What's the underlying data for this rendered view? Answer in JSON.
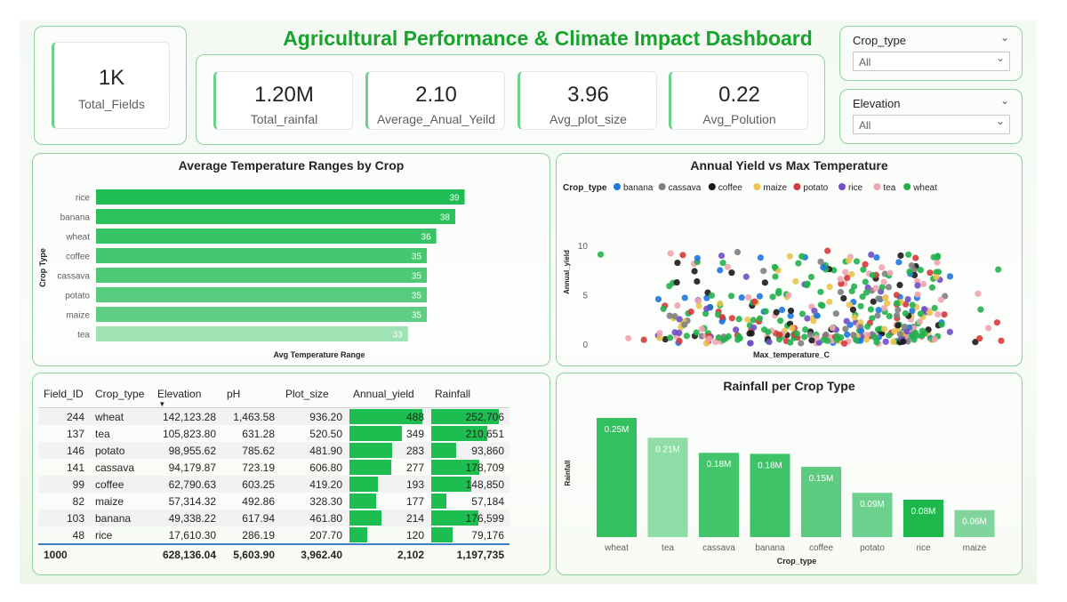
{
  "header": {
    "title": "Agricultural Performance & Climate Impact Dashboard",
    "title_color": "#17a32c"
  },
  "kpis": {
    "total_fields": {
      "value": "1K",
      "label": "Total_Fields"
    },
    "total_rainfall": {
      "value": "1.20M",
      "label": "Total_rainfal"
    },
    "avg_yield": {
      "value": "2.10",
      "label": "Average_Anual_Yeild"
    },
    "avg_plot": {
      "value": "3.96",
      "label": "Avg_plot_size"
    },
    "avg_pollution": {
      "value": "0.22",
      "label": "Avg_Polution"
    }
  },
  "slicers": {
    "crop_type": {
      "title": "Crop_type",
      "value": "All"
    },
    "elevation": {
      "title": "Elevation",
      "value": "All"
    }
  },
  "temp_chart": {
    "title": "Average Temperature Ranges by Crop",
    "xlabel": "Avg Temperature Range",
    "ylabel": "Crop Type"
  },
  "scatter": {
    "title": "Annual Yield vs Max Temperature",
    "legend_title": "Crop_type",
    "xlabel": "Max_temperature_C",
    "ylabel": "Annual_yield"
  },
  "rain_chart": {
    "title": "Rainfall per Crop Type",
    "xlabel": "Crop_type",
    "ylabel": "Rainfall"
  },
  "table": {
    "headers": [
      "Field_ID",
      "Crop_type",
      "Elevation",
      "pH",
      "Plot_size",
      "Annual_yield",
      "Rainfall"
    ],
    "rows": [
      [
        "244",
        "wheat",
        "142,123.28",
        "1,463.58",
        "936.20",
        "488",
        "252,706"
      ],
      [
        "137",
        "tea",
        "105,823.80",
        "631.28",
        "520.50",
        "349",
        "210,651"
      ],
      [
        "146",
        "potato",
        "98,955.62",
        "785.62",
        "481.90",
        "283",
        "93,860"
      ],
      [
        "141",
        "cassava",
        "94,179.87",
        "723.19",
        "606.80",
        "277",
        "178,709"
      ],
      [
        "99",
        "coffee",
        "62,790.63",
        "603.25",
        "419.20",
        "193",
        "148,850"
      ],
      [
        "82",
        "maize",
        "57,314.32",
        "492.86",
        "328.30",
        "177",
        "57,184"
      ],
      [
        "103",
        "banana",
        "49,338.22",
        "617.94",
        "461.80",
        "214",
        "176,599"
      ],
      [
        "48",
        "rice",
        "17,610.30",
        "286.19",
        "207.70",
        "120",
        "79,176"
      ]
    ],
    "total": [
      "1000",
      "",
      "628,136.04",
      "5,603.90",
      "3,962.40",
      "2,102",
      "1,197,735"
    ],
    "bar_color": "#1ebd4f"
  },
  "chart_data": [
    {
      "type": "bar",
      "orientation": "horizontal",
      "title": "Average Temperature Ranges by Crop",
      "xlabel": "Avg Temperature Range",
      "ylabel": "Crop Type",
      "categories": [
        "rice",
        "banana",
        "wheat",
        "coffee",
        "cassava",
        "potato",
        "maize",
        "tea"
      ],
      "values": [
        39,
        38,
        36,
        35,
        35,
        35,
        35,
        33
      ],
      "colors": [
        "#1fbd53",
        "#2dc05d",
        "#38c366",
        "#45c66f",
        "#4fc877",
        "#57cb7e",
        "#60cd85",
        "#9fe2b3"
      ]
    },
    {
      "type": "scatter",
      "title": "Annual Yield vs Max Temperature",
      "xlabel": "Max_temperature_C",
      "ylabel": "Annual_yield",
      "ylim": [
        0,
        13
      ],
      "yticks": [
        0,
        5,
        10
      ],
      "legend": "top",
      "series": [
        {
          "name": "banana",
          "color": "#1f77e0"
        },
        {
          "name": "cassava",
          "color": "#7f7f7f"
        },
        {
          "name": "coffee",
          "color": "#1a1a1a"
        },
        {
          "name": "maize",
          "color": "#e9c44f"
        },
        {
          "name": "potato",
          "color": "#d63a3a"
        },
        {
          "name": "rice",
          "color": "#6f4fc4"
        },
        {
          "name": "tea",
          "color": "#f0a5b0"
        },
        {
          "name": "wheat",
          "color": "#22b14c"
        }
      ]
    },
    {
      "type": "bar",
      "title": "Rainfall per Crop Type",
      "xlabel": "Crop_type",
      "ylabel": "Rainfall",
      "categories": [
        "wheat",
        "tea",
        "cassava",
        "banana",
        "coffee",
        "potato",
        "rice",
        "maize"
      ],
      "values": [
        252706,
        210651,
        178709,
        176599,
        148850,
        93860,
        79176,
        57184
      ],
      "labels": [
        "0.25M",
        "0.21M",
        "0.18M",
        "0.18M",
        "0.15M",
        "0.09M",
        "0.08M",
        "0.06M"
      ],
      "colors": [
        "#33c061",
        "#8edca6",
        "#44c46b",
        "#3ec268",
        "#5ccb80",
        "#6ed08e",
        "#1cb84c",
        "#7fd59b"
      ]
    }
  ]
}
